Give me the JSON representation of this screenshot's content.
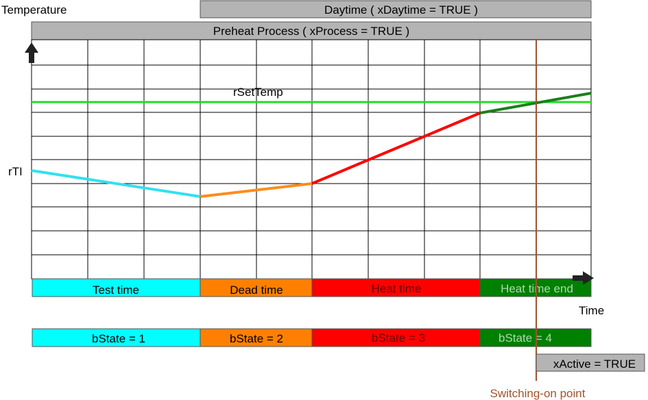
{
  "labels": {
    "y_axis": "Temperature",
    "x_axis": "Time",
    "daytime_bar": "Daytime ( xDaytime = TRUE )",
    "process_bar": "Preheat Process ( xProcess = TRUE )",
    "setpoint": "rSetTemp",
    "actual": "rTI",
    "active": "xActive = TRUE",
    "switching_point": "Switching-on point"
  },
  "phases": [
    {
      "name": "Test time",
      "state": "bState = 1",
      "color": "#00ffff",
      "text_color": "#000000"
    },
    {
      "name": "Dead time",
      "state": "bState = 2",
      "color": "#ff8000",
      "text_color": "#000000"
    },
    {
      "name": "Heat time",
      "state": "bState = 3",
      "color": "#ff0000",
      "text_color": "#660000"
    },
    {
      "name": "Heat time end",
      "state": "bState = 4",
      "color": "#008000",
      "text_color": "#b0d8b0"
    }
  ],
  "colors": {
    "setpoint_line": "#22dd22",
    "bar_fill": "#b4b4b4",
    "grid": "#000000",
    "switch_line": "#a0522d",
    "switch_text": "#a0522d"
  }
}
